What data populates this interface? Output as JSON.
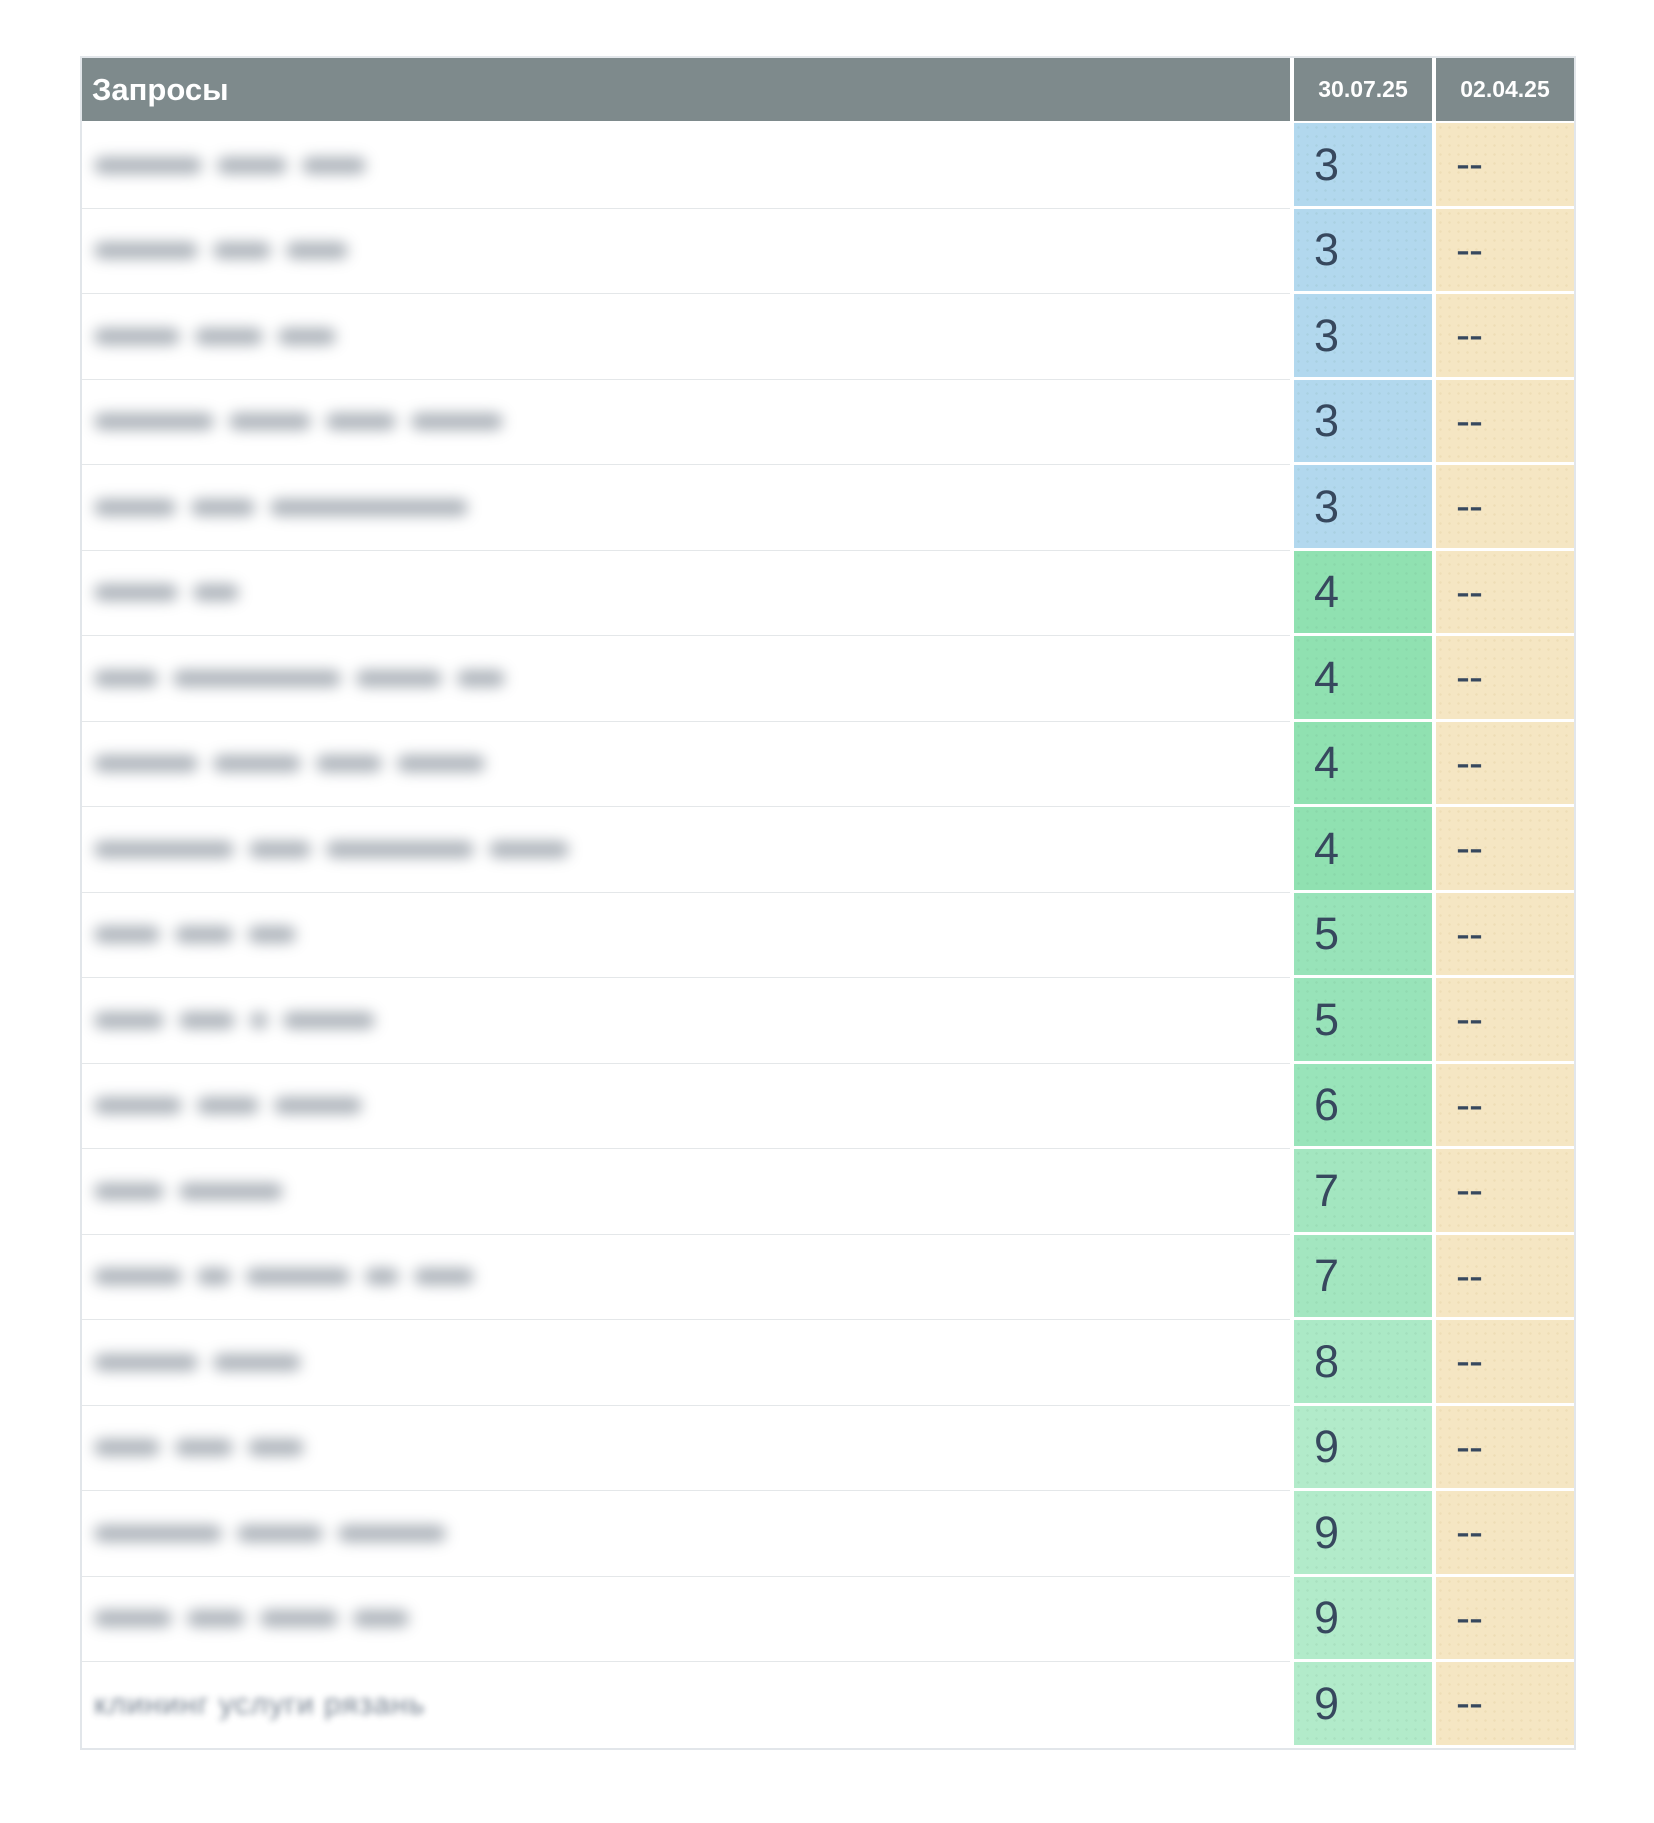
{
  "table": {
    "header": {
      "queries_label": "Запросы",
      "date_columns": [
        "30.07.25",
        "02.04.25"
      ]
    },
    "colors": {
      "header_bg": "#7e8a8c",
      "value_text": "#37485e",
      "previous_cell_bg": "#f5e6c3",
      "value_colors": {
        "3": "#b2d8ee",
        "4": "#90e1b1",
        "5": "#98e3b9",
        "6": "#99e4ba",
        "7": "#a3e6c0",
        "8": "#abe9c6",
        "9": "#b2ebca"
      }
    },
    "rows": [
      {
        "position": "3",
        "previous": "--",
        "redacted": true,
        "word_widths": [
          108,
          70,
          64
        ]
      },
      {
        "position": "3",
        "previous": "--",
        "redacted": true,
        "word_widths": [
          104,
          58,
          62
        ]
      },
      {
        "position": "3",
        "previous": "--",
        "redacted": true,
        "word_widths": [
          86,
          68,
          58
        ]
      },
      {
        "position": "3",
        "previous": "--",
        "redacted": true,
        "word_widths": [
          120,
          82,
          70,
          92
        ]
      },
      {
        "position": "3",
        "previous": "--",
        "redacted": true,
        "word_widths": [
          82,
          64,
          198
        ]
      },
      {
        "position": "4",
        "previous": "--",
        "redacted": true,
        "word_widths": [
          84,
          46
        ]
      },
      {
        "position": "4",
        "previous": "--",
        "redacted": true,
        "word_widths": [
          64,
          168,
          86,
          48
        ]
      },
      {
        "position": "4",
        "previous": "--",
        "redacted": true,
        "word_widths": [
          104,
          88,
          66,
          88
        ]
      },
      {
        "position": "4",
        "previous": "--",
        "redacted": true,
        "word_widths": [
          140,
          62,
          148,
          80
        ]
      },
      {
        "position": "5",
        "previous": "--",
        "redacted": true,
        "word_widths": [
          66,
          58,
          48
        ]
      },
      {
        "position": "5",
        "previous": "--",
        "redacted": true,
        "word_widths": [
          70,
          56,
          18,
          92
        ]
      },
      {
        "position": "6",
        "previous": "--",
        "redacted": true,
        "word_widths": [
          88,
          62,
          88
        ]
      },
      {
        "position": "7",
        "previous": "--",
        "redacted": true,
        "word_widths": [
          70,
          104
        ]
      },
      {
        "position": "7",
        "previous": "--",
        "redacted": true,
        "word_widths": [
          88,
          34,
          104,
          34,
          60
        ]
      },
      {
        "position": "8",
        "previous": "--",
        "redacted": true,
        "word_widths": [
          104,
          88
        ]
      },
      {
        "position": "9",
        "previous": "--",
        "redacted": true,
        "word_widths": [
          66,
          58,
          56
        ]
      },
      {
        "position": "9",
        "previous": "--",
        "redacted": true,
        "word_widths": [
          128,
          86,
          108
        ]
      },
      {
        "position": "9",
        "previous": "--",
        "redacted": true,
        "word_widths": [
          78,
          58,
          78,
          56
        ]
      },
      {
        "position": "9",
        "previous": "--",
        "redacted": true,
        "visible_text": "клининг  услуги рязань",
        "word_widths": []
      }
    ]
  }
}
